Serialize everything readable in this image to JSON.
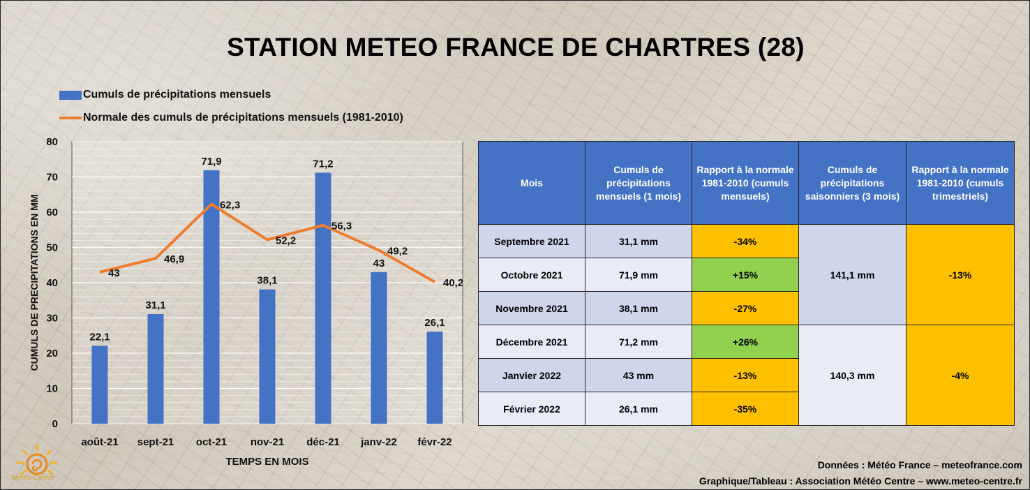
{
  "title": "STATION METEO FRANCE DE CHARTRES (28)",
  "legend": {
    "bars": "Cumuls de précipitations mensuels",
    "line": "Normale des cumuls de précipitations mensuels (1981-2010)"
  },
  "colors": {
    "bar": "#4472c4",
    "line": "#ed7d31",
    "header": "#4472c4",
    "ratio_negative": "#ffc000",
    "ratio_positive": "#92d050"
  },
  "chart_data": {
    "type": "bar",
    "categories": [
      "août-21",
      "sept-21",
      "oct-21",
      "nov-21",
      "déc-21",
      "janv-22",
      "févr-22"
    ],
    "series": [
      {
        "name": "Cumuls de précipitations mensuels",
        "type": "bar",
        "values": [
          22.1,
          31.1,
          71.9,
          38.1,
          71.2,
          43,
          26.1
        ],
        "labels": [
          "22,1",
          "31,1",
          "71,9",
          "38,1",
          "71,2",
          "43",
          "26,1"
        ]
      },
      {
        "name": "Normale des cumuls de précipitations mensuels (1981-2010)",
        "type": "line",
        "values": [
          43,
          46.9,
          62.3,
          52.2,
          56.3,
          49.2,
          40.2
        ],
        "labels": [
          "43",
          "46,9",
          "62,3",
          "52,2",
          "56,3",
          "49,2",
          "40,2"
        ]
      }
    ],
    "xlabel": "TEMPS EN MOIS",
    "ylabel": "CUMULS DE PRECIPITATIONS EN MM",
    "ylim": [
      0,
      80
    ],
    "yticks": [
      0,
      10,
      20,
      30,
      40,
      50,
      60,
      70,
      80
    ],
    "grid": true,
    "legend_position": "top-left"
  },
  "table": {
    "headers": [
      "Mois",
      "Cumuls de précipitations mensuels (1 mois)",
      "Rapport à la normale 1981-2010 (cumuls mensuels)",
      "Cumuls de précipitations saisonniers (3 mois)",
      "Rapport à la normale 1981-2010 (cumuls trimestriels)"
    ],
    "rows": [
      {
        "month": "Septembre 2021",
        "value": "31,1 mm",
        "ratio": "-34%",
        "ratio_sign": "negative"
      },
      {
        "month": "Octobre 2021",
        "value": "71,9 mm",
        "ratio": "+15%",
        "ratio_sign": "positive"
      },
      {
        "month": "Novembre 2021",
        "value": "38,1 mm",
        "ratio": "-27%",
        "ratio_sign": "negative"
      },
      {
        "month": "Décembre 2021",
        "value": "71,2 mm",
        "ratio": "+26%",
        "ratio_sign": "positive"
      },
      {
        "month": "Janvier 2022",
        "value": "43 mm",
        "ratio": "-13%",
        "ratio_sign": "negative"
      },
      {
        "month": "Février 2022",
        "value": "26,1 mm",
        "ratio": "-35%",
        "ratio_sign": "negative"
      }
    ],
    "seasons": [
      {
        "value": "141,1 mm",
        "ratio": "-13%"
      },
      {
        "value": "140,3 mm",
        "ratio": "-4%"
      }
    ]
  },
  "credits": {
    "line1": "Données : Météo France – meteofrance.com",
    "line2": "Graphique/Tableau : Association Météo Centre – www.meteo-centre.fr"
  },
  "logo": {
    "text": "Météo Centre",
    "icon": "sun-logo-icon"
  }
}
